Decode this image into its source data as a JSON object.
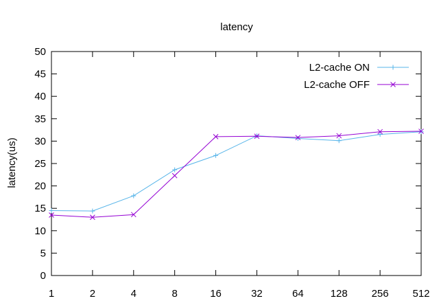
{
  "chart_data": {
    "type": "line",
    "title": "latency",
    "xlabel": "",
    "ylabel": "latency(us)",
    "categories": [
      "1",
      "2",
      "4",
      "8",
      "16",
      "32",
      "64",
      "128",
      "256",
      "512"
    ],
    "ylim": [
      0,
      50
    ],
    "yticks": [
      "0",
      "5",
      "10",
      "15",
      "20",
      "25",
      "30",
      "35",
      "40",
      "45",
      "50"
    ],
    "grid": false,
    "legend_position": "top-right",
    "series": [
      {
        "name": "L2-cache ON",
        "color": "#56b4e9",
        "marker": "plus",
        "values": [
          14.5,
          14.4,
          17.8,
          23.6,
          26.8,
          31.2,
          30.6,
          30.1,
          31.5,
          32.1
        ]
      },
      {
        "name": "L2-cache OFF",
        "color": "#9400d3",
        "marker": "cross",
        "values": [
          13.5,
          13.0,
          13.6,
          22.3,
          31.0,
          31.1,
          30.8,
          31.2,
          32.1,
          32.2
        ]
      }
    ]
  }
}
